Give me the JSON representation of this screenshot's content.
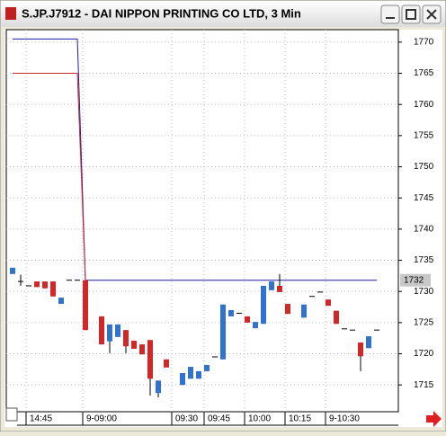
{
  "chart_data": {
    "type": "candlestick",
    "title": "S.JP.J7912 - DAI NIPPON PRINTING CO LTD, 3 Min",
    "categories": [
      null,
      null,
      "14:45",
      null,
      null,
      null,
      null,
      null,
      null,
      "9-09:00",
      null,
      null,
      null,
      null,
      null,
      null,
      null,
      null,
      null,
      null,
      "09:30",
      null,
      null,
      null,
      "09:45",
      null,
      null,
      null,
      null,
      "10:00",
      null,
      null,
      null,
      null,
      "10:15",
      null,
      null,
      null,
      null,
      "9-10:30",
      null,
      null,
      null,
      null,
      null,
      null
    ],
    "open": [
      1732.8,
      1731.6,
      1730.9,
      1731.6,
      1731.6,
      1731.6,
      1728.0,
      1731.8,
      1731.8,
      1731.8,
      null,
      1726.0,
      1722.0,
      1722.7,
      1723.8,
      1722.1,
      1721.5,
      1722.2,
      1713.7,
      1719.1,
      null,
      1715.0,
      1716.0,
      1716.0,
      1717.2,
      1719.5,
      1719.1,
      1726.0,
      1726.5,
      1726.0,
      1724.1,
      1724.8,
      1730.2,
      1730.9,
      1728.0,
      null,
      1725.8,
      1729.2,
      1729.9,
      1728.7,
      1726.9,
      1724.0,
      1723.8,
      1721.8,
      1720.9,
      1723.8
    ],
    "high": [
      1733.8,
      1732.7,
      1730.9,
      1731.6,
      1731.6,
      1731.6,
      1729.0,
      1731.8,
      1731.8,
      1731.8,
      null,
      1726.0,
      1724.7,
      1724.7,
      1723.8,
      1722.1,
      1721.5,
      1722.2,
      1715.7,
      1719.1,
      null,
      1716.9,
      1717.9,
      1717.2,
      1718.2,
      1719.5,
      1727.9,
      1727.0,
      1726.5,
      1726.0,
      1725.1,
      1730.9,
      1731.6,
      1732.8,
      1728.0,
      null,
      1727.9,
      1729.2,
      1729.9,
      1728.7,
      1726.9,
      1724.0,
      1723.8,
      1721.8,
      1722.8,
      1723.8
    ],
    "low": [
      1732.8,
      1730.9,
      1730.9,
      1730.7,
      1730.5,
      1729.2,
      1728.0,
      1731.8,
      1731.8,
      1723.8,
      null,
      1721.5,
      1720.1,
      1722.7,
      1720.1,
      1720.8,
      1719.9,
      1713.3,
      1713.0,
      1717.8,
      null,
      1715.0,
      1716.0,
      1716.0,
      1717.2,
      1719.5,
      1719.1,
      1726.0,
      1726.5,
      1725.0,
      1724.1,
      1724.8,
      1730.2,
      1729.9,
      1726.4,
      null,
      1725.8,
      1729.2,
      1729.9,
      1727.7,
      1724.8,
      1724.0,
      1723.8,
      1717.2,
      1720.9,
      1723.8
    ],
    "close": [
      1733.8,
      1731.6,
      1730.9,
      1730.7,
      1730.5,
      1729.2,
      1729.0,
      1731.8,
      1731.8,
      1723.8,
      null,
      1721.5,
      1724.7,
      1724.7,
      1721.2,
      1720.8,
      1719.9,
      1716.0,
      1715.7,
      1717.8,
      null,
      1716.9,
      1717.9,
      1717.2,
      1718.2,
      1719.5,
      1727.9,
      1727.0,
      1726.5,
      1725.0,
      1725.1,
      1730.9,
      1731.6,
      1729.9,
      1726.4,
      null,
      1727.9,
      1729.2,
      1729.9,
      1727.7,
      1724.8,
      1724.0,
      1723.8,
      1719.6,
      1722.8,
      1723.8
    ],
    "up_color": "#2f72d0",
    "down_color": "#d02828",
    "lines": [
      {
        "color": "#1c1ca8",
        "values": [
          1770.5,
          1770.5,
          1770.5,
          1770.5,
          1770.5,
          1770.5,
          1770.5,
          1770.5,
          1770.5,
          1731.8,
          1731.8,
          1731.8,
          1731.8,
          1731.8,
          1731.8,
          1731.8,
          1731.8,
          1731.8,
          1731.8,
          1731.8,
          1731.8,
          1731.8,
          1731.8,
          1731.8,
          1731.8,
          1731.8,
          1731.8,
          1731.8,
          1731.8,
          1731.8,
          1731.8,
          1731.8,
          1731.8,
          1731.8,
          1731.8,
          1731.8,
          1731.8,
          1731.8,
          1731.8,
          1731.8,
          1731.8,
          1731.8,
          1731.8,
          1731.8,
          1731.8,
          1731.8
        ]
      },
      {
        "color": "#d02828",
        "values": [
          1765,
          1765,
          1765,
          1765,
          1765,
          1765,
          1765,
          1765,
          1765,
          1731.8,
          null,
          null,
          null,
          null,
          null,
          null,
          null,
          null,
          null,
          null,
          null,
          null,
          null,
          null,
          null,
          null,
          null,
          null,
          null,
          null,
          null,
          null,
          null,
          null,
          null,
          null,
          null,
          null,
          null,
          null,
          null,
          null,
          null,
          null,
          null,
          null
        ]
      }
    ],
    "last_price": {
      "value": 1731.8,
      "label": "1732"
    },
    "ylim": [
      1710.7,
      1772
    ],
    "yticks": [
      1715,
      1720,
      1725,
      1730,
      1735,
      1740,
      1745,
      1750,
      1755,
      1760,
      1765,
      1770
    ],
    "grid": true
  }
}
